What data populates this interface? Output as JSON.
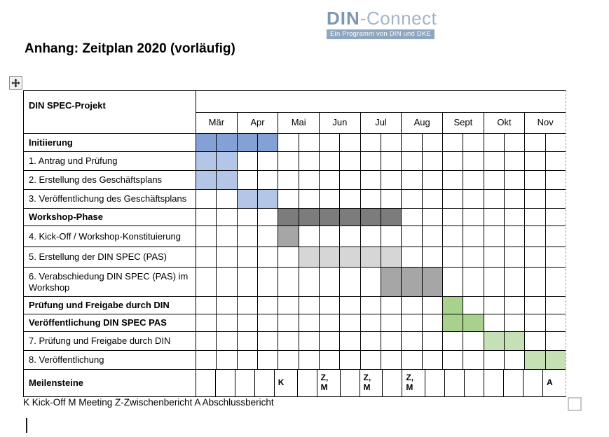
{
  "logo": {
    "name": "DIN",
    "suffix": "-Connect",
    "tagline": "Ein Programm von DIN und DKE",
    "name_color": "#7d96b2",
    "suffix_color": "#a4b4c8",
    "banner_bg": "#8ea6bf"
  },
  "title": "Anhang: Zeitplan 2020 (vorläufig)",
  "table": {
    "corner_label": "DIN SPEC-Projekt",
    "months": [
      "Mär",
      "Apr",
      "Mai",
      "Jun",
      "Jul",
      "Aug",
      "Sept",
      "Okt",
      "Nov"
    ],
    "columns_per_month": 2,
    "colors": {
      "phase_blue": "#84a1d6",
      "light_blue": "#b4c6e7",
      "dark_gray": "#7c7c7c",
      "mid_gray": "#a6a6a6",
      "light_gray": "#d6d6d6",
      "green": "#a9d18e",
      "light_green": "#c5e0b4"
    },
    "rows": [
      {
        "label": "Initiierung",
        "bold": true,
        "fills": [
          {
            "from": 1,
            "to": 4,
            "color": "#84a1d6"
          }
        ]
      },
      {
        "label": "1. Antrag und Prüfung",
        "bold": false,
        "fills": [
          {
            "from": 1,
            "to": 2,
            "color": "#b4c6e7"
          }
        ]
      },
      {
        "label": "2. Erstellung des Geschäftsplans",
        "bold": false,
        "fills": [
          {
            "from": 1,
            "to": 2,
            "color": "#b4c6e7"
          }
        ]
      },
      {
        "label": "3. Veröffentlichung des Geschäftsplans",
        "bold": false,
        "fills": [
          {
            "from": 3,
            "to": 4,
            "color": "#b4c6e7"
          }
        ]
      },
      {
        "label": "Workshop-Phase",
        "bold": true,
        "fills": [
          {
            "from": 5,
            "to": 10,
            "color": "#7c7c7c"
          }
        ]
      },
      {
        "label": "4. Kick-Off / Workshop-Konstituierung",
        "bold": false,
        "fills": [
          {
            "from": 5,
            "to": 5,
            "color": "#a6a6a6"
          }
        ]
      },
      {
        "label": "5. Erstellung der DIN SPEC (PAS)",
        "bold": false,
        "fills": [
          {
            "from": 6,
            "to": 10,
            "color": "#d6d6d6"
          }
        ]
      },
      {
        "label": "6. Verabschiedung DIN SPEC (PAS) im Workshop",
        "bold": false,
        "fills": [
          {
            "from": 10,
            "to": 12,
            "color": "#a6a6a6"
          }
        ]
      },
      {
        "label": "Prüfung und Freigabe durch DIN",
        "bold": true,
        "fills": [
          {
            "from": 13,
            "to": 13,
            "color": "#a9d18e"
          }
        ]
      },
      {
        "label": "Veröffentlichung DIN SPEC PAS",
        "bold": true,
        "fills": [
          {
            "from": 13,
            "to": 14,
            "color": "#a9d18e"
          }
        ]
      },
      {
        "label": "7. Prüfung und Freigabe durch DIN",
        "bold": false,
        "fills": [
          {
            "from": 15,
            "to": 16,
            "color": "#c5e0b4"
          }
        ]
      },
      {
        "label": "8. Veröffentlichung",
        "bold": false,
        "fills": [
          {
            "from": 17,
            "to": 18,
            "color": "#c5e0b4"
          }
        ]
      },
      {
        "label": "Meilensteine",
        "bold": true,
        "fills": [],
        "milestones": [
          {
            "col": 5,
            "text": "K"
          },
          {
            "col": 7,
            "text": "Z,\nM"
          },
          {
            "col": 9,
            "text": "Z,\nM"
          },
          {
            "col": 11,
            "text": "Z,\nM"
          },
          {
            "col": 18,
            "text": "A"
          }
        ]
      }
    ]
  },
  "legend": "K Kick-Off M Meeting Z-Zwischenbericht A Abschlussbericht"
}
